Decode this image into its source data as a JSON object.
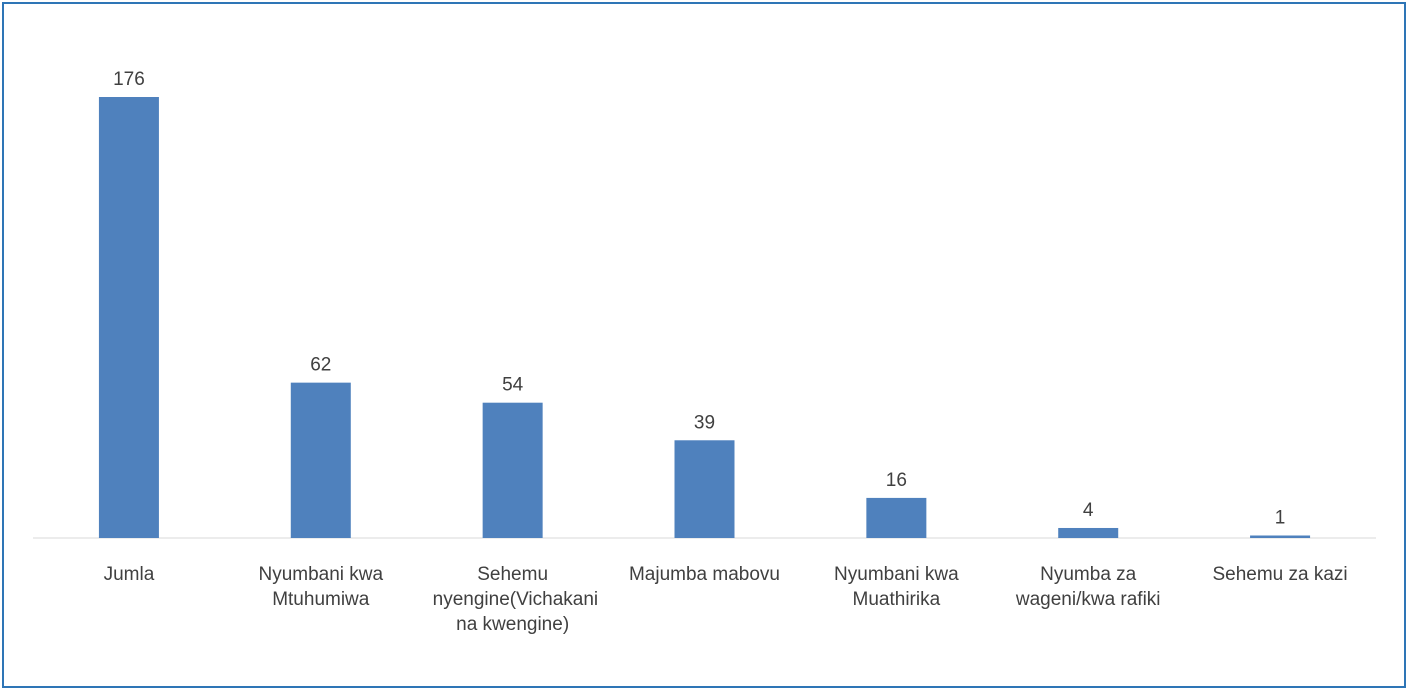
{
  "chart_data": {
    "type": "bar",
    "categories": [
      "Jumla",
      "Nyumbani kwa Mtuhumiwa",
      "Sehemu nyengine(Vichakani na kwengine)",
      "Majumba mabovu",
      "Nyumbani kwa Muathirika",
      "Nyumba za wageni/kwa rafiki",
      "Sehemu za kazi"
    ],
    "values": [
      176,
      62,
      54,
      39,
      16,
      4,
      1
    ],
    "color": "#4f81bd"
  }
}
